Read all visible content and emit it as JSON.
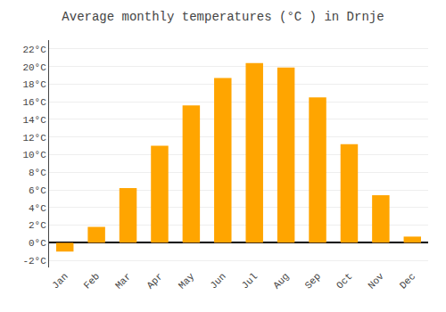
{
  "chart_data": {
    "type": "bar",
    "title": "Average monthly temperatures (°C ) in Drnje",
    "categories": [
      "Jan",
      "Feb",
      "Mar",
      "Apr",
      "May",
      "Jun",
      "Jul",
      "Aug",
      "Sep",
      "Oct",
      "Nov",
      "Dec"
    ],
    "values": [
      -1.0,
      1.8,
      6.2,
      11.0,
      15.6,
      18.7,
      20.4,
      19.9,
      16.5,
      11.2,
      5.4,
      0.7
    ],
    "color": "#FFA500",
    "ylim": [
      -2.8,
      23.0
    ],
    "yticks": [
      {
        "value": -2,
        "label": "-2°C"
      },
      {
        "value": 0,
        "label": "0°C"
      },
      {
        "value": 2,
        "label": "2°C"
      },
      {
        "value": 4,
        "label": "4°C"
      },
      {
        "value": 6,
        "label": "6°C"
      },
      {
        "value": 8,
        "label": "8°C"
      },
      {
        "value": 10,
        "label": "10°C"
      },
      {
        "value": 12,
        "label": "12°C"
      },
      {
        "value": 14,
        "label": "14°C"
      },
      {
        "value": 16,
        "label": "16°C"
      },
      {
        "value": 18,
        "label": "18°C"
      },
      {
        "value": 20,
        "label": "20°C"
      },
      {
        "value": 22,
        "label": "22°C"
      }
    ],
    "grid": true
  }
}
